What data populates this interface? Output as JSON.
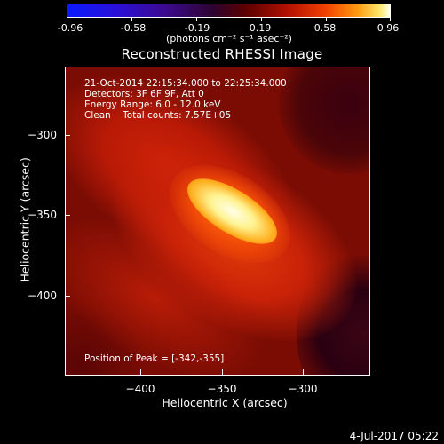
{
  "colorbar": {
    "tick_labels": [
      "-0.96",
      "-0.58",
      "-0.19",
      "0.19",
      "0.58",
      "0.96"
    ],
    "units": "(photons cm⁻² s⁻¹ asec⁻²)"
  },
  "title": "Reconstructed RHESSI Image",
  "annotations": {
    "time_range": "21-Oct-2014 22:15:34.000 to 22:25:34.000",
    "detectors": "Detectors: 3F 6F 9F, Att 0",
    "energy_range": "Energy Range: 6.0 - 12.0 keV",
    "algorithm": "Clean    Total counts: 7.57E+05",
    "peak_position": "Position of Peak = [-342,-355]"
  },
  "axes": {
    "x_label": "Heliocentric X (arcsec)",
    "y_label": "Heliocentric Y (arcsec)",
    "x_ticks": [
      "−400",
      "−350",
      "−300"
    ],
    "y_ticks": [
      "−300",
      "−350",
      "−400"
    ]
  },
  "timestamp": "4-Jul-2017 05:22"
}
